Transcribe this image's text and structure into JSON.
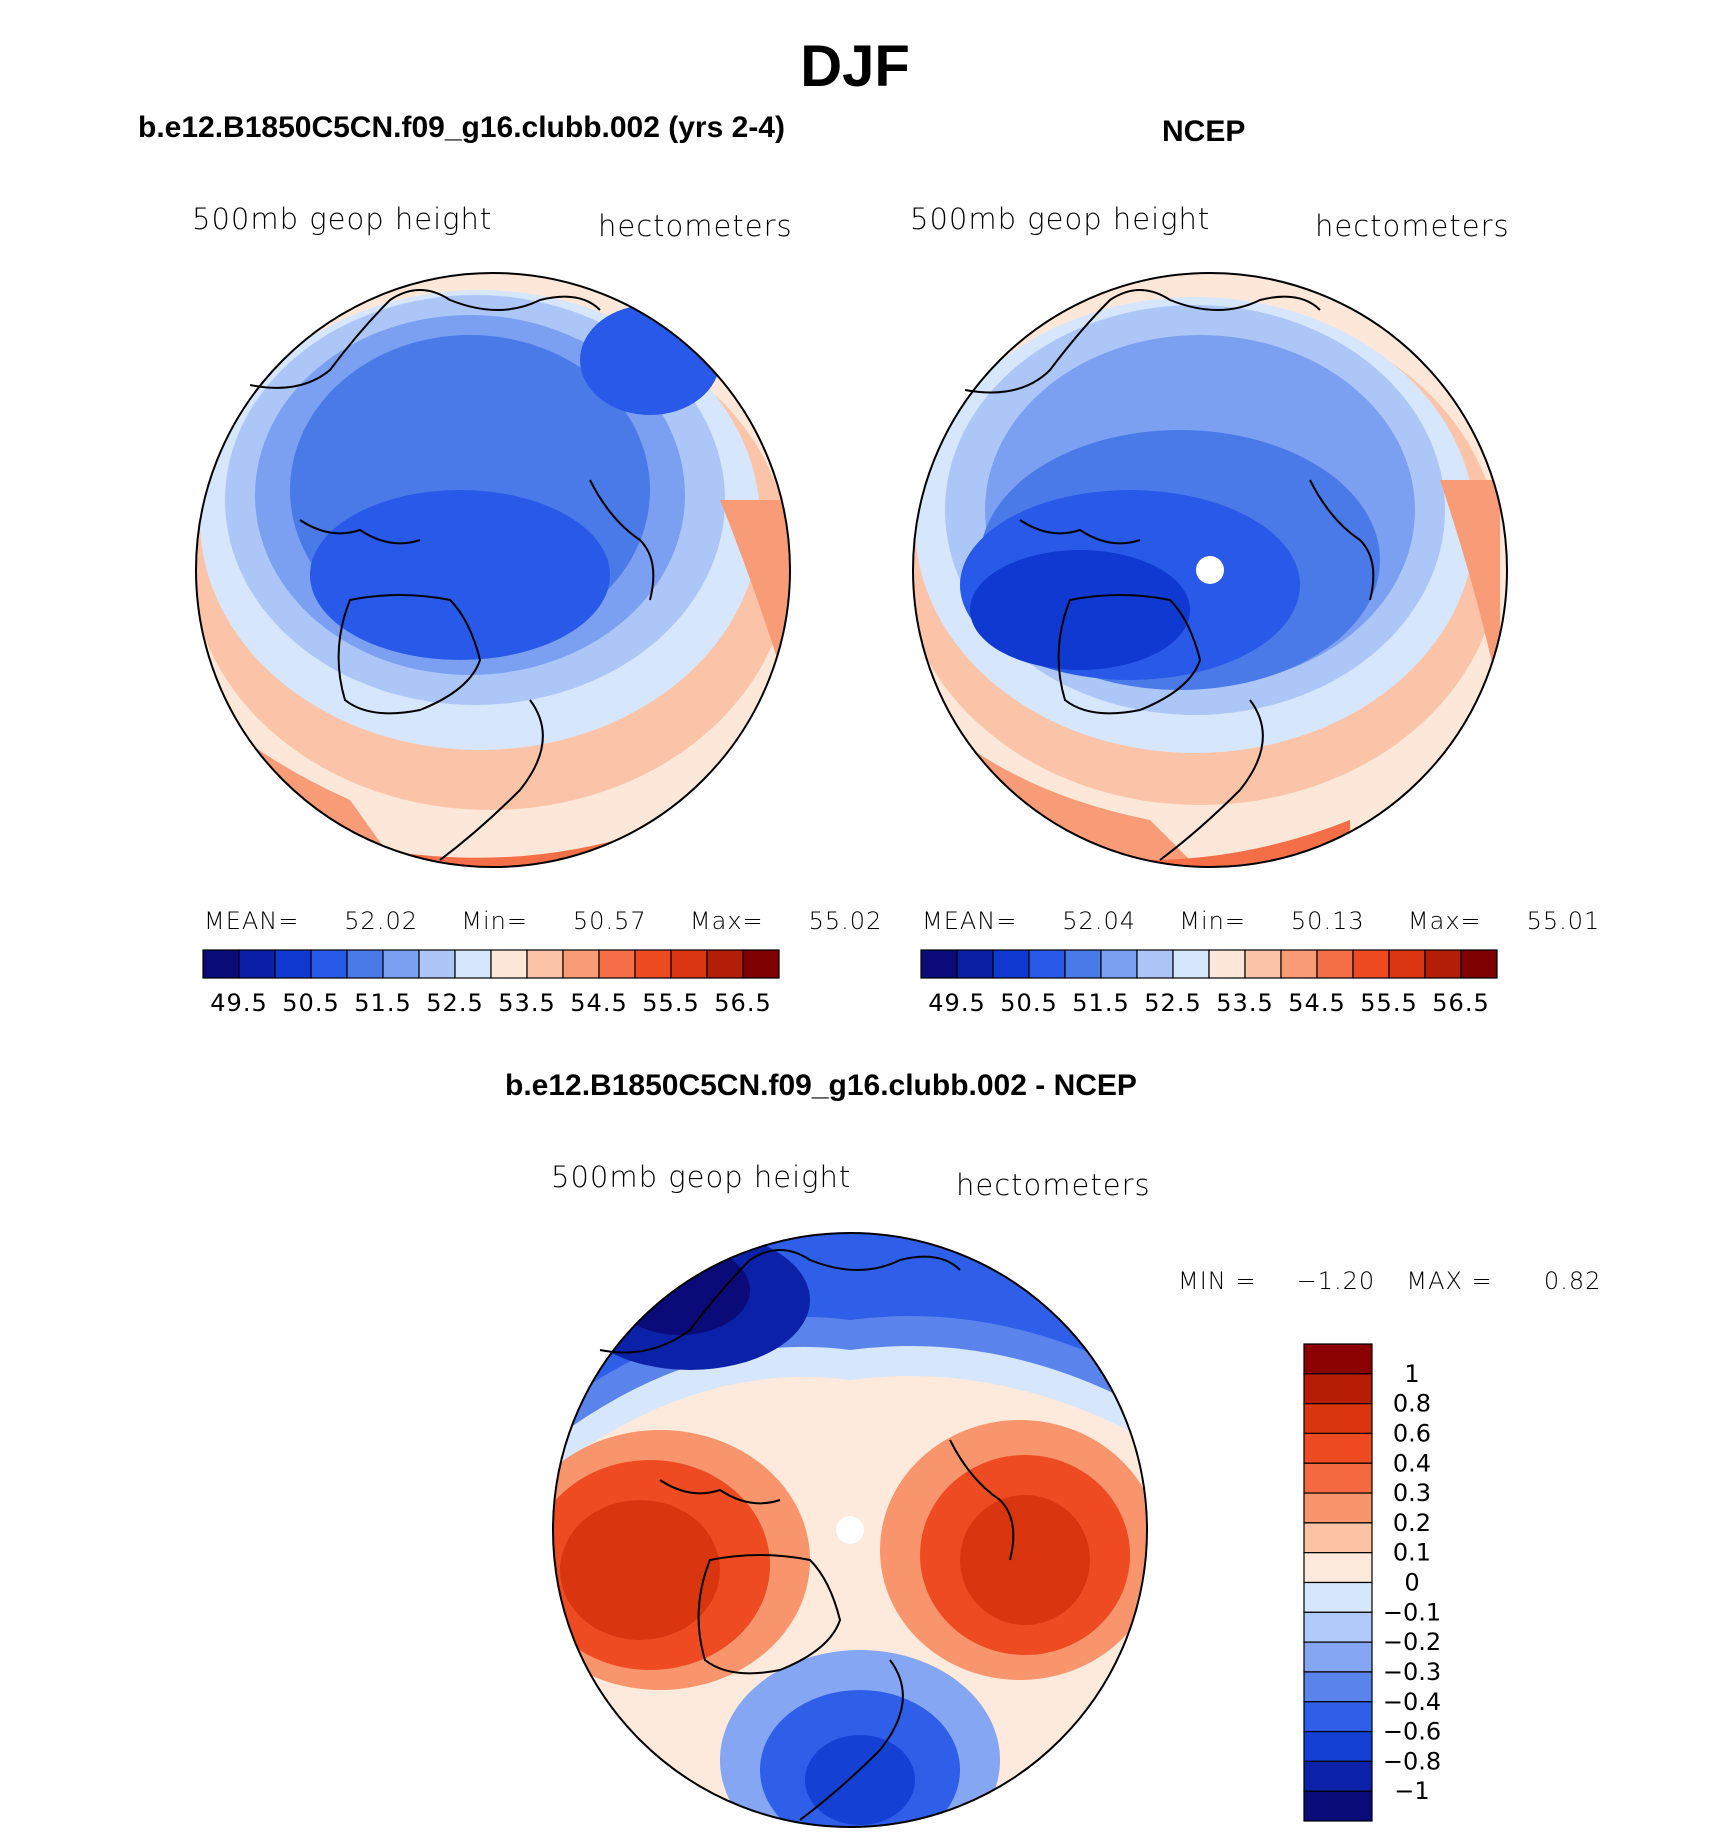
{
  "header": {
    "title": "DJF"
  },
  "panels": {
    "left": {
      "title": "b.e12.B1850C5CN.f09_g16.clubb.002 (yrs 2-4)",
      "variable": "500mb geop height",
      "units": "hectometers",
      "mean_label": "MEAN=",
      "mean": "52.02",
      "min_label": "Min=",
      "min": "50.57",
      "max_label": "Max=",
      "max": "55.02"
    },
    "right": {
      "title": "NCEP",
      "variable": "500mb geop height",
      "units": "hectometers",
      "mean_label": "MEAN=",
      "mean": "52.04",
      "min_label": "Min=",
      "min": "50.13",
      "max_label": "Max=",
      "max": "55.01"
    },
    "diff": {
      "title": "b.e12.B1850C5CN.f09_g16.clubb.002 - NCEP",
      "variable": "500mb geop height",
      "units": "hectometers",
      "min_label": "MIN =",
      "min": "−1.20",
      "max_label": "MAX =",
      "max": "0.82"
    }
  },
  "chart_data": [
    {
      "type": "heatmap",
      "projection": "polar-stereographic north",
      "title": "b.e12.B1850C5CN.f09_g16.clubb.002 (yrs 2-4)",
      "field": "500mb geop height",
      "units": "hectometers",
      "mean": 52.02,
      "min": 50.57,
      "max": 55.02,
      "levels": [
        49.5,
        50,
        50.5,
        51,
        51.5,
        52,
        52.5,
        53,
        53.5,
        54,
        54.5,
        55,
        55.5,
        56,
        56.5
      ],
      "tick_labels": [
        "49.5",
        "50.5",
        "51.5",
        "52.5",
        "53.5",
        "54.5",
        "55.5",
        "56.5"
      ],
      "colors": [
        "#0a0a78",
        "#0b1fa6",
        "#0f39d0",
        "#2859e8",
        "#4a7ae8",
        "#7ba0f2",
        "#adc6f8",
        "#d6e6fc",
        "#fde7d8",
        "#fbc4a8",
        "#f89c77",
        "#f46e48",
        "#ef4b23",
        "#dc3512",
        "#b31e08",
        "#7f0000"
      ]
    },
    {
      "type": "heatmap",
      "projection": "polar-stereographic north",
      "title": "NCEP",
      "field": "500mb geop height",
      "units": "hectometers",
      "mean": 52.04,
      "min": 50.13,
      "max": 55.01,
      "levels": [
        49.5,
        50,
        50.5,
        51,
        51.5,
        52,
        52.5,
        53,
        53.5,
        54,
        54.5,
        55,
        55.5,
        56,
        56.5
      ],
      "tick_labels": [
        "49.5",
        "50.5",
        "51.5",
        "52.5",
        "53.5",
        "54.5",
        "55.5",
        "56.5"
      ],
      "colors": [
        "#0a0a78",
        "#0b1fa6",
        "#0f39d0",
        "#2859e8",
        "#4a7ae8",
        "#7ba0f2",
        "#adc6f8",
        "#d6e6fc",
        "#fde7d8",
        "#fbc4a8",
        "#f89c77",
        "#f46e48",
        "#ef4b23",
        "#dc3512",
        "#b31e08",
        "#7f0000"
      ]
    },
    {
      "type": "heatmap",
      "projection": "polar-stereographic north",
      "title": "b.e12.B1850C5CN.f09_g16.clubb.002 - NCEP",
      "field": "500mb geop height",
      "units": "hectometers",
      "min": -1.2,
      "max": 0.82,
      "levels": [
        1,
        0.8,
        0.6,
        0.4,
        0.3,
        0.2,
        0.1,
        0,
        -0.1,
        -0.2,
        -0.3,
        -0.4,
        -0.6,
        -0.8,
        -1
      ],
      "tick_labels": [
        "1",
        "0.8",
        "0.6",
        "0.4",
        "0.3",
        "0.2",
        "0.1",
        "0",
        "−0.1",
        "−0.2",
        "−0.3",
        "−0.4",
        "−0.6",
        "−0.8",
        "−1"
      ],
      "colors": [
        "#8b0000",
        "#b71c05",
        "#d9350f",
        "#ef4b23",
        "#f4693f",
        "#f9956c",
        "#fbc2a4",
        "#fdeadc",
        "#d6e6fc",
        "#b0c9f8",
        "#85a6f2",
        "#5a84ec",
        "#2f5ee8",
        "#1440d4",
        "#0b22a8",
        "#0a0a78"
      ]
    }
  ]
}
